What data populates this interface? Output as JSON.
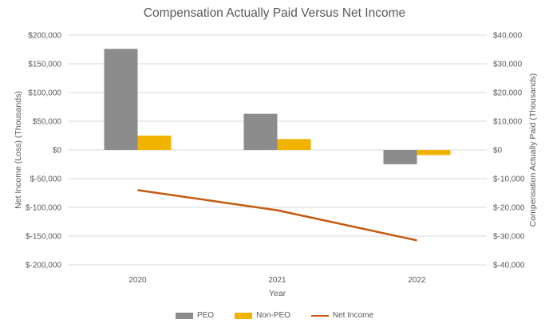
{
  "chart_data": {
    "type": "bar",
    "title": "Compensation Actually Paid Versus Net Income",
    "xlabel": "Year",
    "ylabel_left": "Net Income (Loss) (Thousands)",
    "ylabel_right": "Compensation Actually Paid  (Thousands)",
    "categories": [
      "2020",
      "2021",
      "2022"
    ],
    "left_axis": {
      "min": -200000,
      "max": 200000,
      "ticks": [
        200000,
        150000,
        100000,
        50000,
        0,
        -50000,
        -100000,
        -150000,
        -200000
      ],
      "tick_labels": [
        "$200,000",
        "$150,000",
        "$100,000",
        "$50,000",
        "$0",
        "$-50,000",
        "$-100,000",
        "$-150,000",
        "$-200,000"
      ]
    },
    "right_axis": {
      "min": -40000,
      "max": 40000,
      "ticks": [
        40000,
        30000,
        20000,
        10000,
        0,
        -10000,
        -20000,
        -30000,
        -40000
      ],
      "tick_labels": [
        "$40,000",
        "$30,000",
        "$20,000",
        "$10,000",
        "$0",
        "$-10,000",
        "$-20,000",
        "$-30,000",
        "$-40,000"
      ]
    },
    "series": [
      {
        "name": "PEO",
        "type": "bar",
        "axis": "left",
        "color": "#8c8c8c",
        "values": [
          176000,
          63000,
          -25000
        ]
      },
      {
        "name": "Non-PEO",
        "type": "bar",
        "axis": "left",
        "color": "#f0b400",
        "values": [
          25000,
          19000,
          -9000
        ]
      },
      {
        "name": "Net Income",
        "type": "line",
        "axis": "right",
        "color": "#c55a11",
        "values": [
          -14000,
          -21000,
          -31500
        ]
      }
    ],
    "grid": true,
    "legend_position": "bottom"
  }
}
